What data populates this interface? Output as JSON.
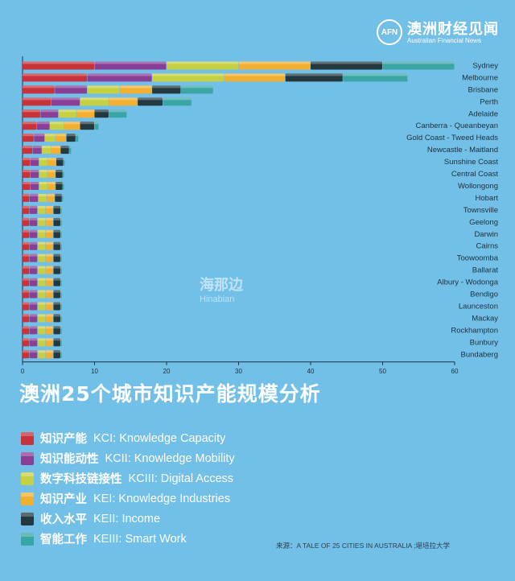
{
  "brand": {
    "mark": "AFN",
    "name_cn": "澳洲财经见闻",
    "name_en": "Australian Financial News"
  },
  "watermark_center": {
    "cn": "海那边",
    "en": "Hinabian"
  },
  "title": "澳洲25个城市知识产能规模分析",
  "legend": [
    {
      "cn": "知识产能",
      "en": "KCI: Knowledge Capacity",
      "color": "#c8323a"
    },
    {
      "cn": "知识能动性",
      "en": "KCII: Knowledge Mobility",
      "color": "#8a3f97"
    },
    {
      "cn": "数字科技链接性",
      "en": "KCIII: Digital Access",
      "color": "#c6d043"
    },
    {
      "cn": "知识产业",
      "en": "KEI: Knowledge Industries",
      "color": "#f2b033"
    },
    {
      "cn": "收入水平",
      "en": "KEII: Income",
      "color": "#23393f"
    },
    {
      "cn": "智能工作",
      "en": "KEIII: Smart Work",
      "color": "#3aa5a5"
    }
  ],
  "source": "来源：A TALE OF 25 CITIES IN AUSTRALIA ;堪培拉大学",
  "chart_data": {
    "type": "bar",
    "orientation": "horizontal",
    "stacked": true,
    "xlim": [
      0,
      60
    ],
    "xticks": [
      0,
      10,
      20,
      30,
      40,
      50,
      60
    ],
    "categories": [
      "Sydney",
      "Melbourne",
      "Brisbane",
      "Perth",
      "Adelaide",
      "Canberra - Queanbeyan",
      "Gold Coast - Tweed Heads",
      "Newcastle - Maitland",
      "Sunshine Coast",
      "Central Coast",
      "Wollongong",
      "Hobart",
      "Townsville",
      "Geelong",
      "Darwin",
      "Cairns",
      "Toowoomba",
      "Ballarat",
      "Albury - Wodonga",
      "Bendigo",
      "Launceston",
      "Mackay",
      "Rockhampton",
      "Bunbury",
      "Bundaberg"
    ],
    "series": [
      {
        "name": "KCI: Knowledge Capacity",
        "color": "#c8323a",
        "values": [
          10,
          9,
          4.5,
          4,
          2.5,
          2,
          1.6,
          1.4,
          1.1,
          1.1,
          1.1,
          1,
          1,
          1,
          1,
          1,
          1,
          1,
          1,
          1,
          1,
          1,
          1,
          1,
          1
        ]
      },
      {
        "name": "KCII: Knowledge Mobility",
        "color": "#8a3f97",
        "values": [
          10,
          9,
          4.5,
          4,
          2.5,
          1.8,
          1.5,
          1.3,
          1.2,
          1.2,
          1.2,
          1.2,
          1.1,
          1.1,
          1.1,
          1.1,
          1.1,
          1.1,
          1.1,
          1.1,
          1.1,
          1.1,
          1.1,
          1.1,
          1.1
        ]
      },
      {
        "name": "KCIII: Digital Access",
        "color": "#c6d043",
        "values": [
          10,
          10,
          4.5,
          4,
          2.5,
          2,
          1.5,
          1.3,
          1.2,
          1.2,
          1.2,
          1.2,
          1.1,
          1.1,
          1.1,
          1.1,
          1.1,
          1.1,
          1.1,
          1.1,
          1.1,
          1.1,
          1.1,
          1.1,
          1.1
        ]
      },
      {
        "name": "KEI: Knowledge Industries",
        "color": "#f2b033",
        "values": [
          10,
          8.5,
          4.5,
          4,
          2.5,
          2.2,
          1.5,
          1.3,
          1.2,
          1.1,
          1.1,
          1.1,
          1.1,
          1.1,
          1.1,
          1.1,
          1.1,
          1.1,
          1.1,
          1.1,
          1.1,
          1.1,
          1.1,
          1.1,
          1.1
        ]
      },
      {
        "name": "KEII: Income",
        "color": "#23393f",
        "values": [
          10,
          8,
          4,
          3.5,
          2,
          2,
          1.3,
          1.2,
          1,
          1,
          1,
          1,
          1,
          1,
          1,
          1,
          1,
          1,
          1,
          1,
          1,
          1,
          1,
          1,
          1
        ]
      },
      {
        "name": "KEIII: Smart Work",
        "color": "#3aa5a5",
        "values": [
          10,
          9,
          4.5,
          4,
          2.5,
          0.6,
          0.4,
          0.3,
          0.2,
          0.2,
          0.2,
          0.2,
          0.2,
          0.2,
          0.2,
          0.2,
          0.2,
          0.2,
          0.2,
          0.2,
          0.2,
          0.2,
          0.2,
          0.2,
          0.2
        ]
      }
    ]
  }
}
